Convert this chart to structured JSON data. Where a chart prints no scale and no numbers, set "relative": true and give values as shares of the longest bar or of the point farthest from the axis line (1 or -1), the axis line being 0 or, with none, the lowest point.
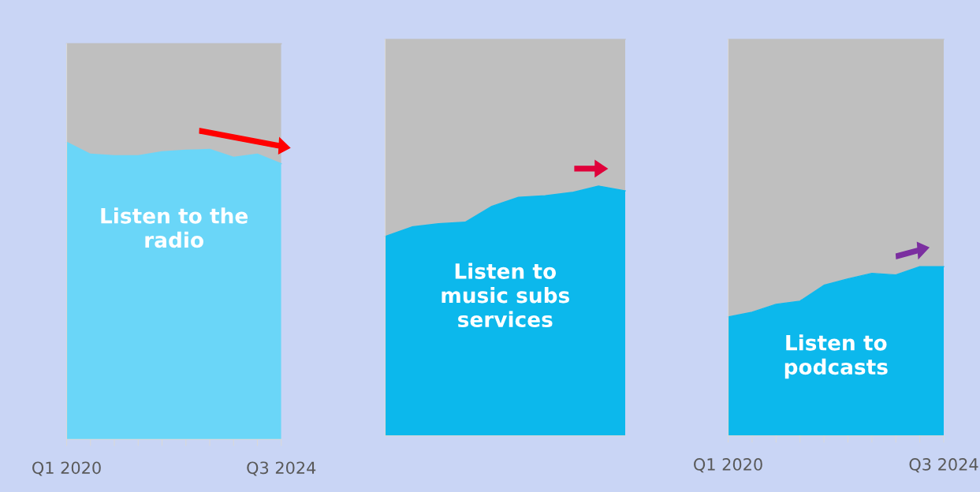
{
  "chart_data": [
    {
      "type": "area",
      "stacked": true,
      "relative": true,
      "legend": false,
      "categories": [
        "Q1 2020",
        null,
        null,
        null,
        null,
        null,
        null,
        null,
        null,
        "Q3 2024"
      ],
      "series": [
        {
          "color": "#6ad6f8",
          "values": [
            0.751,
            0.721,
            0.717,
            0.717,
            0.727,
            0.731,
            0.733,
            0.713,
            0.721,
            0.697
          ]
        },
        {
          "color": "#bfbfbf",
          "values": [
            0.249,
            0.279,
            0.283,
            0.283,
            0.273,
            0.269,
            0.267,
            0.287,
            0.279,
            0.303
          ]
        }
      ],
      "annotations": [
        "Listen to the\nradio"
      ]
    },
    {
      "type": "area",
      "stacked": true,
      "relative": true,
      "legend": false,
      "categories": [
        null,
        null,
        null,
        null,
        null,
        null,
        null,
        null,
        null,
        null
      ],
      "series": [
        {
          "color": "#0cb8ec",
          "values": [
            0.503,
            0.527,
            0.535,
            0.539,
            0.579,
            0.602,
            0.606,
            0.614,
            0.63,
            0.618
          ]
        },
        {
          "color": "#bfbfbf",
          "values": [
            0.497,
            0.473,
            0.465,
            0.461,
            0.421,
            0.398,
            0.394,
            0.386,
            0.37,
            0.382
          ]
        }
      ],
      "annotations": [
        "Listen to\nmusic subs\nservices"
      ]
    },
    {
      "type": "area",
      "stacked": true,
      "relative": true,
      "legend": false,
      "categories": [
        "Q1 2020",
        null,
        null,
        null,
        null,
        null,
        null,
        null,
        null,
        "Q3 2024"
      ],
      "series": [
        {
          "color": "#0cb8ec",
          "values": [
            0.3,
            0.312,
            0.332,
            0.34,
            0.38,
            0.396,
            0.41,
            0.406,
            0.427,
            0.427
          ]
        },
        {
          "color": "#bfbfbf",
          "values": [
            0.7,
            0.688,
            0.668,
            0.66,
            0.62,
            0.604,
            0.59,
            0.594,
            0.573,
            0.573
          ]
        }
      ],
      "annotations": [
        "Listen to\npodcasts"
      ]
    }
  ]
}
